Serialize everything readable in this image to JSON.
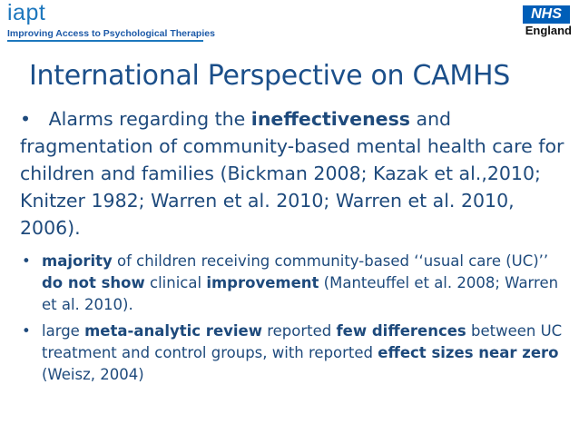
{
  "header": {
    "logo": "iapt",
    "tagline": "Improving Access to Psychological Therapies",
    "nhs_logo": "NHS",
    "nhs_region": "England"
  },
  "slide": {
    "title": "International Perspective on CAMHS",
    "bullet_char": "•",
    "p1": {
      "a": "Alarms regarding the ",
      "b": "ineffectiveness",
      "c": " and fragmentation of community-based mental health care for children and families (Bickman 2008; Kazak et al.,2010; Knitzer 1982; Warren et al. 2010; Warren et al. 2010, 2006)."
    },
    "p2": {
      "a": "majority",
      "b": " of children receiving community-based ‘‘usual care (UC)’’ ",
      "c": "do not show",
      "d": " clinical ",
      "e": "improvement",
      "f": " (Manteuffel et al. 2008; Warren et al. 2010)."
    },
    "p3": {
      "a": "large ",
      "b": "meta-analytic review",
      "c": " reported ",
      "d": "few differences",
      "e": " between UC treatment and control groups, with reported ",
      "f": "effect sizes near zero",
      "g": " (Weisz, 2004)"
    }
  }
}
